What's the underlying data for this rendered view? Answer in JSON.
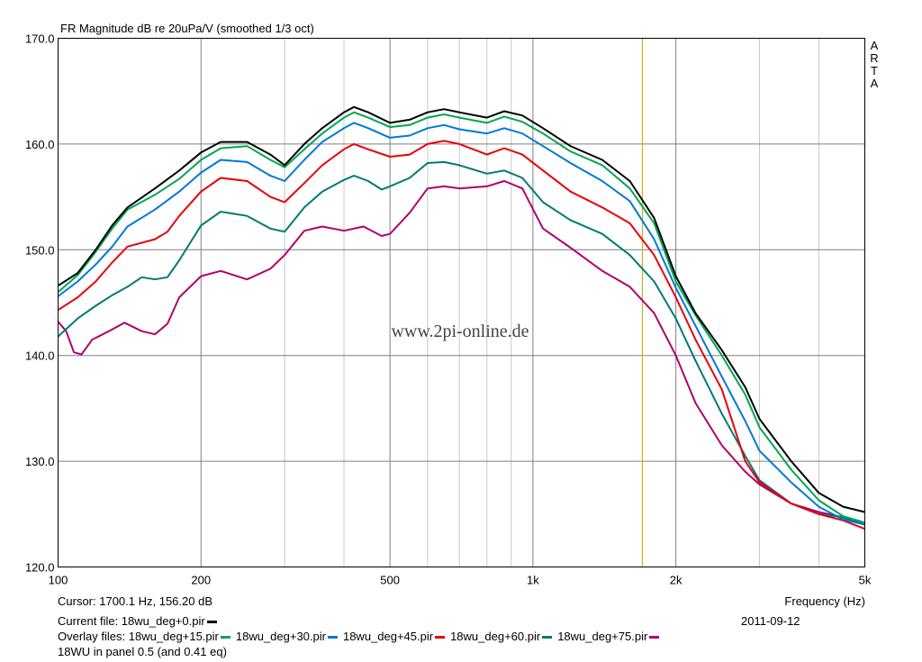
{
  "chart_data": {
    "type": "line",
    "title": "FR Magnitude dB re 20uPa/V (smoothed 1/3 oct)",
    "xlabel": "Frequency (Hz)",
    "ylabel": "",
    "x_scale": "log",
    "xlim": [
      100,
      5000
    ],
    "ylim": [
      120,
      170
    ],
    "y_ticks": [
      "170.0",
      "160.0",
      "150.0",
      "140.0",
      "130.0",
      "120.0"
    ],
    "y_tick_values": [
      170,
      160,
      150,
      140,
      130,
      120
    ],
    "x_ticks": [
      "100",
      "200",
      "500",
      "1k",
      "2k",
      "5k"
    ],
    "x_tick_values": [
      100,
      200,
      500,
      1000,
      2000,
      5000
    ],
    "grid": true,
    "cursor_x": 1700.1,
    "watermark": "www.2pi-online.de",
    "brand_letters": [
      "A",
      "R",
      "T",
      "A"
    ],
    "series": [
      {
        "name": "18wu_deg+0.pir",
        "color": "#000000",
        "points": [
          [
            100,
            146.6
          ],
          [
            110,
            147.8
          ],
          [
            120,
            150.0
          ],
          [
            130,
            152.3
          ],
          [
            140,
            154.0
          ],
          [
            160,
            155.8
          ],
          [
            180,
            157.5
          ],
          [
            200,
            159.2
          ],
          [
            220,
            160.2
          ],
          [
            250,
            160.2
          ],
          [
            280,
            159.0
          ],
          [
            300,
            158.0
          ],
          [
            330,
            160.0
          ],
          [
            360,
            161.5
          ],
          [
            400,
            163.0
          ],
          [
            420,
            163.5
          ],
          [
            450,
            163.0
          ],
          [
            500,
            162.0
          ],
          [
            550,
            162.3
          ],
          [
            600,
            163.0
          ],
          [
            650,
            163.3
          ],
          [
            700,
            163.0
          ],
          [
            800,
            162.5
          ],
          [
            870,
            163.1
          ],
          [
            950,
            162.7
          ],
          [
            1050,
            161.5
          ],
          [
            1200,
            159.8
          ],
          [
            1400,
            158.5
          ],
          [
            1600,
            156.5
          ],
          [
            1800,
            153.0
          ],
          [
            2000,
            147.5
          ],
          [
            2200,
            144.0
          ],
          [
            2500,
            140.5
          ],
          [
            2800,
            137.0
          ],
          [
            3000,
            134.0
          ],
          [
            3500,
            130.0
          ],
          [
            4000,
            127.0
          ],
          [
            4500,
            125.7
          ],
          [
            5000,
            125.2
          ]
        ]
      },
      {
        "name": "18wu_deg+15.pir",
        "color": "#00a651",
        "points": [
          [
            100,
            146.0
          ],
          [
            110,
            147.6
          ],
          [
            120,
            149.8
          ],
          [
            130,
            152.0
          ],
          [
            140,
            153.8
          ],
          [
            160,
            155.2
          ],
          [
            180,
            156.7
          ],
          [
            200,
            158.5
          ],
          [
            220,
            159.6
          ],
          [
            250,
            159.8
          ],
          [
            280,
            158.5
          ],
          [
            300,
            157.8
          ],
          [
            330,
            159.5
          ],
          [
            360,
            161.0
          ],
          [
            400,
            162.5
          ],
          [
            420,
            163.0
          ],
          [
            450,
            162.5
          ],
          [
            500,
            161.6
          ],
          [
            550,
            161.8
          ],
          [
            600,
            162.5
          ],
          [
            650,
            162.8
          ],
          [
            700,
            162.5
          ],
          [
            800,
            162.0
          ],
          [
            870,
            162.6
          ],
          [
            950,
            162.1
          ],
          [
            1050,
            161.0
          ],
          [
            1200,
            159.3
          ],
          [
            1400,
            158.0
          ],
          [
            1600,
            155.8
          ],
          [
            1800,
            152.5
          ],
          [
            2000,
            147.0
          ],
          [
            2200,
            143.8
          ],
          [
            2500,
            140.0
          ],
          [
            2800,
            136.3
          ],
          [
            3000,
            133.2
          ],
          [
            3500,
            129.2
          ],
          [
            4000,
            126.3
          ],
          [
            4500,
            124.8
          ],
          [
            5000,
            124.2
          ]
        ]
      },
      {
        "name": "18wu_deg+30.pir",
        "color": "#0078d7",
        "points": [
          [
            100,
            145.6
          ],
          [
            110,
            147.0
          ],
          [
            120,
            148.6
          ],
          [
            130,
            150.3
          ],
          [
            140,
            152.2
          ],
          [
            160,
            153.8
          ],
          [
            180,
            155.5
          ],
          [
            200,
            157.3
          ],
          [
            220,
            158.5
          ],
          [
            250,
            158.3
          ],
          [
            280,
            157.0
          ],
          [
            300,
            156.5
          ],
          [
            330,
            158.5
          ],
          [
            360,
            160.2
          ],
          [
            400,
            161.5
          ],
          [
            420,
            162.0
          ],
          [
            450,
            161.5
          ],
          [
            500,
            160.6
          ],
          [
            550,
            160.8
          ],
          [
            600,
            161.5
          ],
          [
            650,
            161.8
          ],
          [
            700,
            161.4
          ],
          [
            800,
            161.0
          ],
          [
            870,
            161.5
          ],
          [
            950,
            161.0
          ],
          [
            1050,
            159.8
          ],
          [
            1200,
            158.2
          ],
          [
            1400,
            156.5
          ],
          [
            1600,
            154.6
          ],
          [
            1800,
            151.0
          ],
          [
            2000,
            146.4
          ],
          [
            2200,
            142.8
          ],
          [
            2500,
            138.0
          ],
          [
            2800,
            133.8
          ],
          [
            3000,
            131.0
          ],
          [
            3500,
            128.0
          ],
          [
            4000,
            125.7
          ],
          [
            4500,
            124.5
          ],
          [
            5000,
            124.0
          ]
        ]
      },
      {
        "name": "18wu_deg+45.pir",
        "color": "#e8000b",
        "points": [
          [
            100,
            144.3
          ],
          [
            110,
            145.5
          ],
          [
            120,
            147.0
          ],
          [
            130,
            148.8
          ],
          [
            140,
            150.3
          ],
          [
            160,
            151.0
          ],
          [
            170,
            151.7
          ],
          [
            180,
            153.2
          ],
          [
            200,
            155.5
          ],
          [
            220,
            156.8
          ],
          [
            250,
            156.5
          ],
          [
            280,
            155.0
          ],
          [
            300,
            154.5
          ],
          [
            330,
            156.3
          ],
          [
            360,
            158.0
          ],
          [
            400,
            159.5
          ],
          [
            420,
            160.0
          ],
          [
            450,
            159.5
          ],
          [
            500,
            158.8
          ],
          [
            550,
            159.0
          ],
          [
            600,
            160.0
          ],
          [
            650,
            160.3
          ],
          [
            700,
            160.0
          ],
          [
            800,
            159.0
          ],
          [
            870,
            159.6
          ],
          [
            950,
            159.0
          ],
          [
            1050,
            157.5
          ],
          [
            1200,
            155.5
          ],
          [
            1400,
            154.0
          ],
          [
            1600,
            152.5
          ],
          [
            1800,
            149.5
          ],
          [
            2000,
            145.5
          ],
          [
            2200,
            141.5
          ],
          [
            2500,
            136.8
          ],
          [
            2800,
            130.0
          ],
          [
            3000,
            128.0
          ],
          [
            3500,
            126.0
          ],
          [
            4000,
            125.0
          ],
          [
            4500,
            124.4
          ],
          [
            5000,
            123.6
          ]
        ]
      },
      {
        "name": "18wu_deg+60.pir",
        "color": "#007a73",
        "points": [
          [
            100,
            141.8
          ],
          [
            110,
            143.5
          ],
          [
            120,
            144.7
          ],
          [
            130,
            145.7
          ],
          [
            140,
            146.5
          ],
          [
            150,
            147.4
          ],
          [
            160,
            147.2
          ],
          [
            170,
            147.4
          ],
          [
            180,
            149.0
          ],
          [
            200,
            152.3
          ],
          [
            220,
            153.6
          ],
          [
            250,
            153.2
          ],
          [
            280,
            152.0
          ],
          [
            300,
            151.7
          ],
          [
            330,
            154.0
          ],
          [
            360,
            155.5
          ],
          [
            400,
            156.6
          ],
          [
            420,
            157.0
          ],
          [
            450,
            156.5
          ],
          [
            480,
            155.7
          ],
          [
            500,
            156.0
          ],
          [
            550,
            156.8
          ],
          [
            600,
            158.2
          ],
          [
            650,
            158.3
          ],
          [
            700,
            158.0
          ],
          [
            800,
            157.2
          ],
          [
            870,
            157.5
          ],
          [
            950,
            156.8
          ],
          [
            1050,
            154.5
          ],
          [
            1200,
            152.8
          ],
          [
            1400,
            151.5
          ],
          [
            1600,
            149.5
          ],
          [
            1800,
            147.0
          ],
          [
            2000,
            143.5
          ],
          [
            2200,
            139.5
          ],
          [
            2500,
            134.5
          ],
          [
            2800,
            130.5
          ],
          [
            3000,
            128.2
          ],
          [
            3500,
            126.0
          ],
          [
            4000,
            125.0
          ],
          [
            4500,
            124.7
          ],
          [
            5000,
            124.0
          ]
        ]
      },
      {
        "name": "18wu_deg+75.pir",
        "color": "#b0006c",
        "points": [
          [
            100,
            143.2
          ],
          [
            104,
            142.3
          ],
          [
            108,
            140.3
          ],
          [
            112,
            140.1
          ],
          [
            118,
            141.5
          ],
          [
            128,
            142.3
          ],
          [
            138,
            143.1
          ],
          [
            150,
            142.3
          ],
          [
            160,
            142.0
          ],
          [
            170,
            143.0
          ],
          [
            180,
            145.5
          ],
          [
            200,
            147.5
          ],
          [
            220,
            148.0
          ],
          [
            250,
            147.2
          ],
          [
            280,
            148.2
          ],
          [
            300,
            149.5
          ],
          [
            330,
            151.8
          ],
          [
            360,
            152.2
          ],
          [
            400,
            151.8
          ],
          [
            440,
            152.2
          ],
          [
            480,
            151.3
          ],
          [
            500,
            151.5
          ],
          [
            550,
            153.5
          ],
          [
            600,
            155.8
          ],
          [
            650,
            156.0
          ],
          [
            700,
            155.8
          ],
          [
            800,
            156.0
          ],
          [
            870,
            156.5
          ],
          [
            950,
            155.8
          ],
          [
            1050,
            152.0
          ],
          [
            1200,
            150.2
          ],
          [
            1400,
            148.0
          ],
          [
            1600,
            146.5
          ],
          [
            1800,
            144.0
          ],
          [
            2000,
            140.0
          ],
          [
            2200,
            135.5
          ],
          [
            2500,
            131.5
          ],
          [
            2800,
            129.0
          ],
          [
            3000,
            127.8
          ],
          [
            3500,
            126.0
          ],
          [
            4000,
            125.2
          ],
          [
            4500,
            124.7
          ],
          [
            5000,
            124.0
          ]
        ]
      }
    ]
  },
  "footer": {
    "cursor": "Cursor:  1700.1 Hz, 156.20 dB",
    "freq_label": "Frequency (Hz)",
    "current_file": "Current file:  18wu_deg+0.pir",
    "date": "2011-09-12",
    "overlay_prefix": "Overlay files:  ",
    "note": "18WU in panel 0.5 (and 0.41 eq)"
  }
}
